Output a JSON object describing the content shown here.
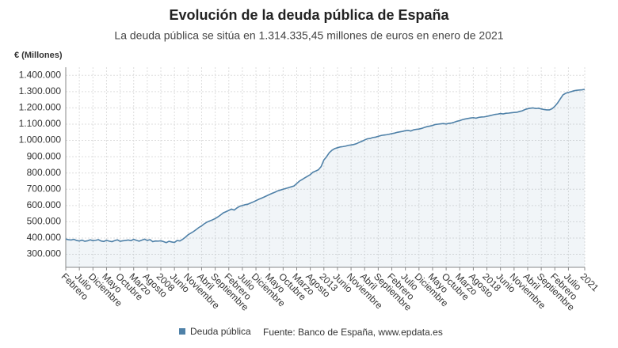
{
  "chart_data": {
    "type": "line",
    "title": "Evolución de la deuda pública de España",
    "subtitle": "La deuda pública se sitúa en 1.314.335,45 millones de euros en enero de 2021",
    "y_label": "€ (Millones)",
    "source": "Fuente: Banco de España, www.epdata.es",
    "grid": true,
    "ylim": [
      220000,
      1450000
    ],
    "yticks": [
      {
        "value": 300000,
        "label": "300.000"
      },
      {
        "value": 400000,
        "label": "400.000"
      },
      {
        "value": 500000,
        "label": "500.000"
      },
      {
        "value": 600000,
        "label": "600.000"
      },
      {
        "value": 700000,
        "label": "700.000"
      },
      {
        "value": 800000,
        "label": "800.000"
      },
      {
        "value": 900000,
        "label": "900.000"
      },
      {
        "value": 1000000,
        "label": "1.000.000"
      },
      {
        "value": 1100000,
        "label": "1.100.000"
      },
      {
        "value": 1200000,
        "label": "1.200.000"
      },
      {
        "value": 1300000,
        "label": "1.300.000"
      },
      {
        "value": 1400000,
        "label": "1.400.000"
      }
    ],
    "categories": [
      "Febrero",
      null,
      null,
      null,
      null,
      "Julio",
      null,
      null,
      null,
      null,
      "Diciembre",
      null,
      null,
      null,
      null,
      "Mayo",
      null,
      null,
      null,
      null,
      "Octubre",
      null,
      null,
      null,
      null,
      "Marzo",
      null,
      null,
      null,
      null,
      "Agosto",
      null,
      null,
      null,
      null,
      "2008",
      null,
      null,
      null,
      null,
      "Junio",
      null,
      null,
      null,
      null,
      "Noviembre",
      null,
      null,
      null,
      null,
      "Abril",
      null,
      null,
      null,
      null,
      "Septiembre",
      null,
      null,
      null,
      null,
      "Febrero",
      null,
      null,
      null,
      null,
      "Julio",
      null,
      null,
      null,
      null,
      "Diciembre",
      null,
      null,
      null,
      null,
      "Mayo",
      null,
      null,
      null,
      null,
      "Octubre",
      null,
      null,
      null,
      null,
      "Marzo",
      null,
      null,
      null,
      null,
      "Agosto",
      null,
      null,
      null,
      null,
      "2013",
      null,
      null,
      null,
      null,
      "Junio",
      null,
      null,
      null,
      null,
      "Noviembre",
      null,
      null,
      null,
      null,
      "Abril",
      null,
      null,
      null,
      null,
      "Septiembre",
      null,
      null,
      null,
      null,
      "Febrero",
      null,
      null,
      null,
      null,
      "Julio",
      null,
      null,
      null,
      null,
      "Diciembre",
      null,
      null,
      null,
      null,
      "Mayo",
      null,
      null,
      null,
      null,
      "Octubre",
      null,
      null,
      null,
      null,
      "Marzo",
      null,
      null,
      null,
      null,
      "Agosto",
      null,
      null,
      null,
      null,
      "2018",
      null,
      null,
      null,
      null,
      "Junio",
      null,
      null,
      null,
      null,
      "Noviembre",
      null,
      null,
      null,
      null,
      "Abril",
      null,
      null,
      null,
      null,
      "Septiembre",
      null,
      null,
      null,
      null,
      "Febrero",
      null,
      null,
      null,
      null,
      "Julio",
      null,
      null,
      null,
      null,
      null,
      "2021"
    ],
    "series": [
      {
        "name": "Deuda pública",
        "color": "#4f81a8",
        "values": [
          394000,
          390000,
          388000,
          392000,
          385000,
          382000,
          387000,
          380000,
          383000,
          389000,
          384000,
          386000,
          390000,
          382000,
          379000,
          386000,
          381000,
          378000,
          384000,
          389000,
          380000,
          383000,
          385000,
          388000,
          384000,
          392000,
          386000,
          381000,
          387000,
          393000,
          385000,
          390000,
          378000,
          382000,
          381000,
          383000,
          378000,
          372000,
          380000,
          376000,
          373000,
          385000,
          382000,
          392000,
          405000,
          420000,
          430000,
          440000,
          452000,
          465000,
          475000,
          488000,
          498000,
          505000,
          512000,
          520000,
          530000,
          542000,
          555000,
          562000,
          570000,
          578000,
          572000,
          585000,
          595000,
          600000,
          605000,
          608000,
          615000,
          622000,
          630000,
          638000,
          645000,
          652000,
          660000,
          668000,
          675000,
          682000,
          690000,
          695000,
          700000,
          705000,
          710000,
          715000,
          720000,
          735000,
          750000,
          760000,
          770000,
          780000,
          790000,
          805000,
          812000,
          820000,
          840000,
          880000,
          900000,
          925000,
          940000,
          950000,
          955000,
          960000,
          962000,
          965000,
          970000,
          972000,
          975000,
          980000,
          988000,
          995000,
          1003000,
          1010000,
          1012000,
          1018000,
          1020000,
          1025000,
          1030000,
          1033000,
          1035000,
          1038000,
          1042000,
          1045000,
          1050000,
          1053000,
          1056000,
          1060000,
          1062000,
          1058000,
          1065000,
          1068000,
          1070000,
          1074000,
          1080000,
          1085000,
          1088000,
          1092000,
          1098000,
          1100000,
          1102000,
          1104000,
          1101000,
          1105000,
          1107000,
          1112000,
          1118000,
          1122000,
          1128000,
          1132000,
          1135000,
          1138000,
          1140000,
          1137000,
          1142000,
          1144000,
          1145000,
          1148000,
          1152000,
          1156000,
          1160000,
          1162000,
          1165000,
          1163000,
          1167000,
          1168000,
          1170000,
          1172000,
          1173000,
          1178000,
          1182000,
          1190000,
          1195000,
          1198000,
          1200000,
          1196000,
          1198000,
          1194000,
          1190000,
          1188000,
          1188000,
          1195000,
          1210000,
          1230000,
          1255000,
          1280000,
          1290000,
          1295000,
          1300000,
          1305000,
          1308000,
          1310000,
          1311000,
          1314335.45
        ]
      }
    ]
  }
}
